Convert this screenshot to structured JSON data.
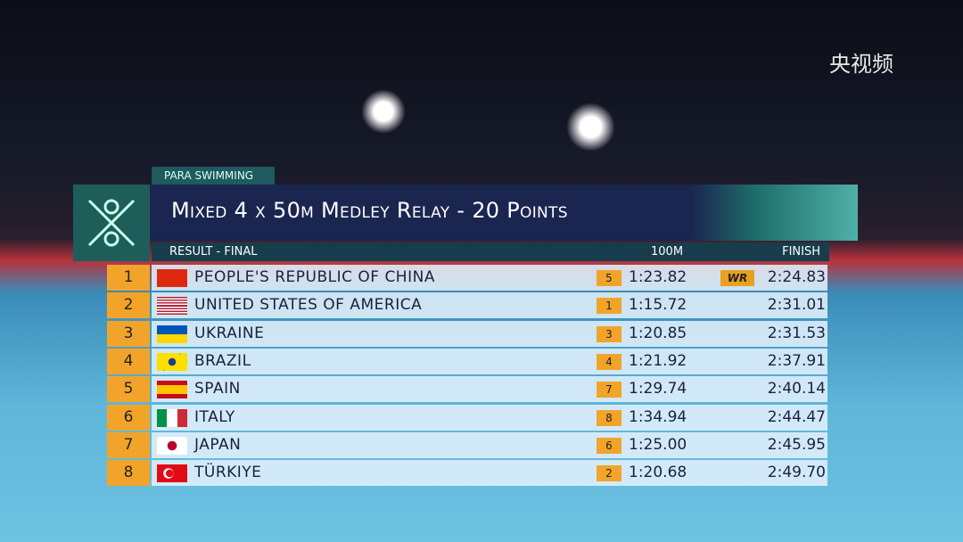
{
  "watermark": "央视频",
  "header": {
    "category": "PARA SWIMMING",
    "title": "Mixed 4 x 50m Medley Relay - 20 Points",
    "subtitle": "RESULT - FINAL"
  },
  "table": {
    "columns": [
      "100M",
      "FINISH"
    ],
    "rows": [
      {
        "rank": "1",
        "country": "PEOPLE'S REPUBLIC OF CHINA",
        "split_rank": "5",
        "split": "1:23.82",
        "record": "WR",
        "finish": "2:24.83"
      },
      {
        "rank": "2",
        "country": "UNITED STATES OF AMERICA",
        "split_rank": "1",
        "split": "1:15.72",
        "finish": "2:31.01"
      },
      {
        "rank": "3",
        "country": "UKRAINE",
        "split_rank": "3",
        "split": "1:20.85",
        "finish": "2:31.53"
      },
      {
        "rank": "4",
        "country": "BRAZIL",
        "split_rank": "4",
        "split": "1:21.92",
        "finish": "2:37.91"
      },
      {
        "rank": "5",
        "country": "SPAIN",
        "split_rank": "7",
        "split": "1:29.74",
        "finish": "2:40.14"
      },
      {
        "rank": "6",
        "country": "ITALY",
        "split_rank": "8",
        "split": "1:34.94",
        "finish": "2:44.47"
      },
      {
        "rank": "7",
        "country": "JAPAN",
        "split_rank": "6",
        "split": "1:25.00",
        "finish": "2:45.95"
      },
      {
        "rank": "8",
        "country": "TÜRKIYE",
        "split_rank": "2",
        "split": "1:20.68",
        "finish": "2:49.70"
      }
    ]
  }
}
